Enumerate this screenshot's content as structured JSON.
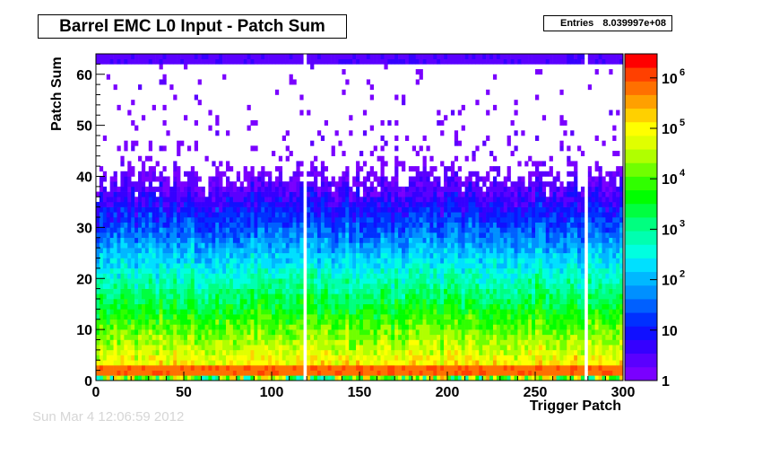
{
  "chart_data": {
    "type": "heatmap",
    "title": "Barrel EMC L0 Input - Patch Sum",
    "stats": {
      "label": "Entries",
      "value": "8.039997e+08"
    },
    "xlabel": "Trigger Patch",
    "ylabel": "Patch Sum",
    "xlim": [
      0,
      300
    ],
    "ylim": [
      0,
      64
    ],
    "xticks": [
      "0",
      "50",
      "100",
      "150",
      "200",
      "250",
      "300"
    ],
    "yticks": [
      "0",
      "10",
      "20",
      "30",
      "40",
      "50",
      "60"
    ],
    "z_scale": "log",
    "z_range": [
      1,
      3000000
    ],
    "colorbar_labels": [
      {
        "base": "1",
        "exp": ""
      },
      {
        "base": "10",
        "exp": ""
      },
      {
        "base": "10",
        "exp": "2"
      },
      {
        "base": "10",
        "exp": "3"
      },
      {
        "base": "10",
        "exp": "4"
      },
      {
        "base": "10",
        "exp": "5"
      },
      {
        "base": "10",
        "exp": "6"
      }
    ],
    "gaps_at_trigger_patch": [
      118,
      278
    ],
    "palette": [
      "#7a00ff",
      "#5a00ff",
      "#3500ff",
      "#1010ff",
      "#0030ff",
      "#0060ff",
      "#0090ff",
      "#00b8ff",
      "#00e0ff",
      "#00ffe0",
      "#00ffb0",
      "#00ff80",
      "#00ff40",
      "#00ff00",
      "#30ff00",
      "#70ff00",
      "#b0ff00",
      "#e0ff00",
      "#ffff00",
      "#ffd000",
      "#ffa000",
      "#ff7000",
      "#ff4000",
      "#ff0000"
    ]
  },
  "footer": {
    "date_text": "Sun Mar  4 12:06:59 2012"
  }
}
